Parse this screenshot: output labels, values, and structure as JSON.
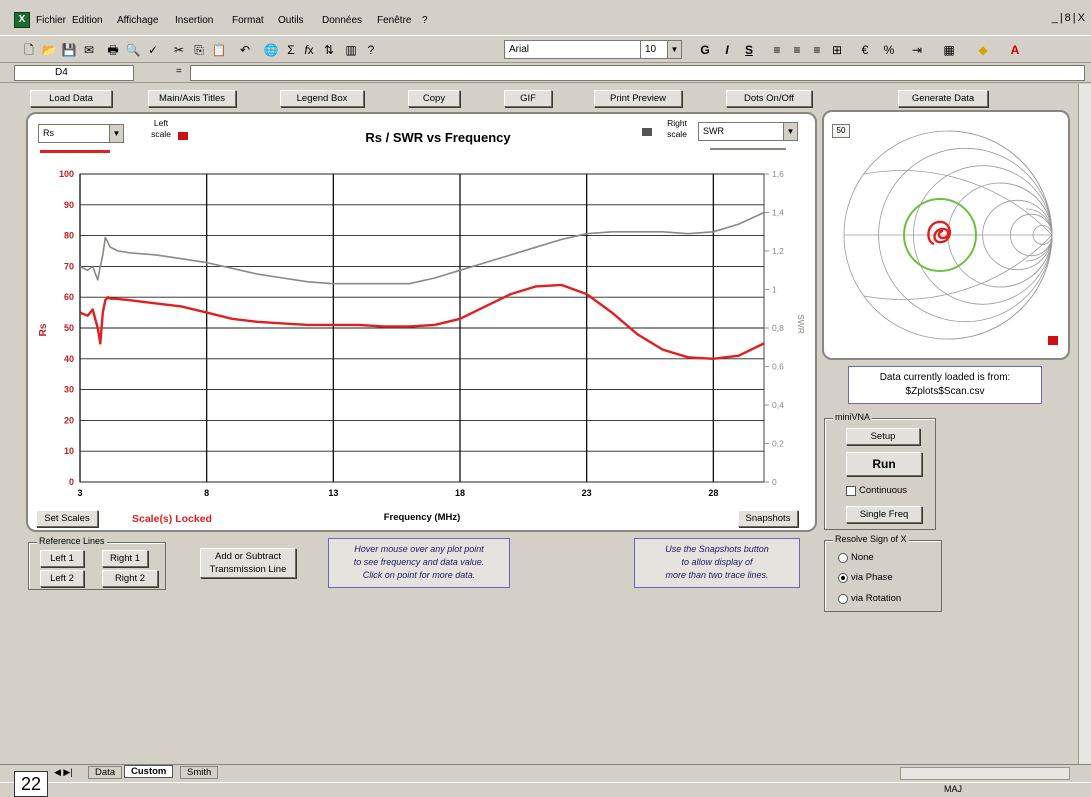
{
  "menu": {
    "items": [
      "Fichier",
      "Edition",
      "Affichage",
      "Insertion",
      "Format",
      "Outils",
      "Données",
      "Fenêtre",
      "?"
    ],
    "window_controls": "_|8|X"
  },
  "toolbar": {
    "font_name": "Arial",
    "font_size": "10",
    "bold": "G",
    "italic": "I",
    "underline": "S"
  },
  "formula_bar": {
    "cell_ref": "D4",
    "equals": "="
  },
  "top_buttons": {
    "load_data": "Load Data",
    "main_axis_titles": "Main/Axis Titles",
    "legend_box": "Legend Box",
    "copy": "Copy",
    "gif": "GIF",
    "print_preview": "Print Preview",
    "dots_on_off": "Dots On/Off",
    "generate_data": "Generate Data"
  },
  "chart": {
    "left_select": "Rs",
    "left_scale_label": "Left scale",
    "right_scale_label": "Right scale",
    "right_select": "SWR",
    "set_scales": "Set Scales",
    "scales_locked": "Scale(s) Locked",
    "snapshots": "Snapshots"
  },
  "chart_data": {
    "type": "line",
    "title": "Rs / SWR  vs  Frequency",
    "xlabel": "Frequency (MHz)",
    "ylabel_left": "Rs",
    "ylabel_right": "SWR",
    "xlim": [
      3,
      30
    ],
    "ylim_left": [
      0,
      100
    ],
    "ylim_right": [
      0,
      1.6
    ],
    "x_ticks": [
      "3",
      "8",
      "13",
      "18",
      "23",
      "28"
    ],
    "y_left_ticks": [
      "0",
      "10",
      "20",
      "30",
      "40",
      "50",
      "60",
      "70",
      "80",
      "90",
      "100"
    ],
    "y_right_ticks": [
      "0",
      "0,2",
      "0,4",
      "0,6",
      "0,8",
      "1",
      "1,2",
      "1,4",
      "1,6"
    ],
    "grid": true,
    "series": [
      {
        "name": "Rs",
        "axis": "left",
        "color": "#e02020",
        "x": [
          3,
          3.3,
          3.5,
          3.7,
          3.8,
          3.9,
          4.0,
          4.1,
          4.2,
          4.4,
          5,
          6,
          7,
          8,
          9,
          10,
          11,
          12,
          13,
          14,
          15,
          16,
          17,
          18,
          19,
          20,
          21,
          22,
          23,
          24,
          25,
          26,
          27,
          28,
          29,
          30
        ],
        "y": [
          55,
          54,
          56,
          50,
          45,
          55,
          59,
          60,
          59.5,
          59.5,
          59,
          58,
          57,
          55,
          53,
          52,
          51.5,
          51,
          51,
          51,
          50.5,
          50.5,
          51,
          53,
          57,
          61,
          63.5,
          64,
          61,
          55,
          48,
          43,
          40.5,
          40,
          41,
          45
        ]
      },
      {
        "name": "SWR",
        "axis": "right",
        "color": "#8c8882",
        "x": [
          3,
          3.3,
          3.5,
          3.7,
          3.8,
          3.9,
          4.0,
          4.2,
          4.5,
          5,
          6,
          7,
          8,
          9,
          10,
          11,
          12,
          13,
          14,
          15,
          16,
          17,
          18,
          19,
          20,
          21,
          22,
          23,
          24,
          25,
          26,
          27,
          28,
          29,
          30
        ],
        "y": [
          1.12,
          1.1,
          1.12,
          1.05,
          1.12,
          1.18,
          1.27,
          1.22,
          1.2,
          1.19,
          1.18,
          1.16,
          1.14,
          1.11,
          1.08,
          1.06,
          1.04,
          1.03,
          1.03,
          1.03,
          1.03,
          1.06,
          1.1,
          1.14,
          1.18,
          1.22,
          1.26,
          1.29,
          1.3,
          1.3,
          1.3,
          1.29,
          1.3,
          1.34,
          1.4
        ]
      }
    ]
  },
  "smith": {
    "zoom_label": "50",
    "trace_color": "#e02020",
    "circle_color": "#6cc040"
  },
  "data_source": {
    "line1": "Data currently loaded is from:",
    "line2": "$Zplots$Scan.csv"
  },
  "miniVNA": {
    "legend": "miniVNA",
    "setup": "Setup",
    "run": "Run",
    "continuous": "Continuous",
    "single_freq": "Single Freq"
  },
  "resolve_sign": {
    "legend": "Resolve Sign of X",
    "options": [
      "None",
      "via Phase",
      "via Rotation"
    ],
    "selected": "via Phase"
  },
  "reference_lines": {
    "legend": "Reference Lines",
    "left1": "Left 1",
    "right1": "Right 1",
    "left2": "Left 2",
    "right2": "Right 2"
  },
  "transmission": {
    "line1": "Add or Subtract",
    "line2": "Transmission Line"
  },
  "notes": {
    "hover_1": "Hover mouse over any plot point",
    "hover_2": "to see frequency and data value.",
    "hover_3": "Click on point for more data.",
    "snap_1": "Use the Snapshots button",
    "snap_2": "to allow display of",
    "snap_3": "more than two trace lines."
  },
  "tabs": [
    "Data",
    "Custom",
    "Smith"
  ],
  "active_tab": "Custom",
  "status": {
    "maj": "MAJ"
  },
  "page_number": "22"
}
